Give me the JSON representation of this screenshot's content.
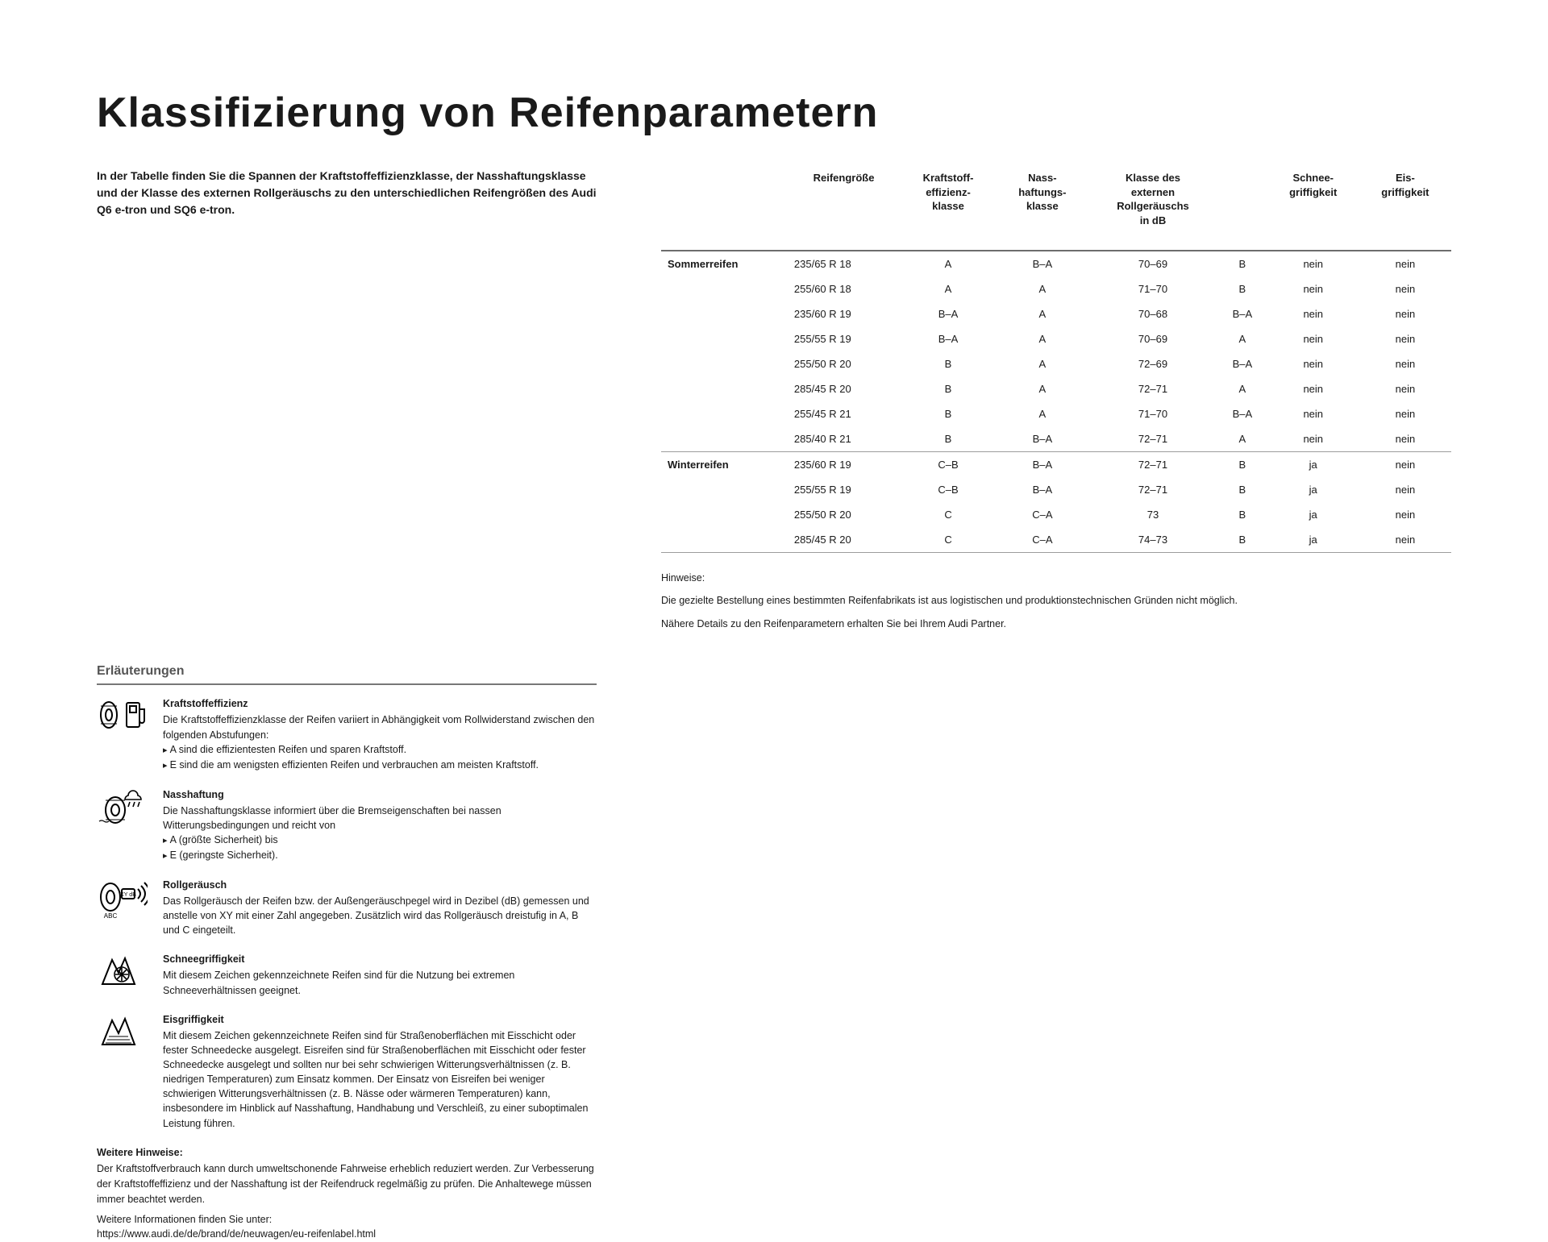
{
  "title": "Klassifizierung von Reifenparametern",
  "intro": "In der Tabelle finden Sie die Spannen der Kraftstoffeffizienzklasse, der Nasshaftungsklasse und der Klasse des externen Rollgeräuschs zu den unterschiedlichen Reifengrößen des Audi Q6 e-tron und SQ6 e-tron.",
  "erlTitle": "Erläuterungen",
  "expl": [
    {
      "title": "Kraftstoffeffizienz",
      "body": "Die Kraftstoffeffizienzklasse der Reifen variiert in Abhängigkeit vom Rollwiderstand zwischen den folgenden Abstufungen:",
      "bullets": [
        "A sind die effizientesten Reifen und sparen Kraftstoff.",
        "E sind die am wenigsten effizienten Reifen und verbrauchen am meisten Kraftstoff."
      ]
    },
    {
      "title": "Nasshaftung",
      "body": "Die Nasshaftungsklasse informiert über die Bremseigenschaften bei nassen Witterungsbedingungen und reicht von",
      "bullets": [
        "A (größte Sicherheit) bis",
        "E (geringste Sicherheit)."
      ]
    },
    {
      "title": "Rollgeräusch",
      "body": "Das Rollgeräusch der Reifen bzw. der Außengeräuschpegel wird in Dezibel (dB) gemessen und anstelle von XY mit einer Zahl angegeben. Zusätzlich wird das Rollgeräusch dreistufig in A, B und C eingeteilt.",
      "bullets": []
    },
    {
      "title": "Schneegriffigkeit",
      "body": "Mit diesem Zeichen gekennzeichnete Reifen sind für die Nutzung bei extremen Schneeverhältnissen geeignet.",
      "bullets": []
    },
    {
      "title": "Eisgriffigkeit",
      "body": "Mit diesem Zeichen gekennzeichnete Reifen sind für Straßenoberflächen mit Eisschicht oder fester Schneedecke ausgelegt.\nEisreifen sind für Straßenoberflächen mit Eisschicht oder fester Schneedecke ausgelegt und sollten nur bei sehr schwierigen Witterungsverhältnissen (z. B. niedrigen Temperaturen) zum Einsatz kommen. Der Einsatz von Eisreifen bei weniger schwierigen Witterungsverhältnissen (z. B. Nässe oder wärmeren Temperaturen) kann, insbesondere im Hinblick auf Nasshaftung, Handhabung und Verschleiß, zu einer suboptimalen Leistung führen.",
      "bullets": []
    }
  ],
  "furtherTitle": "Weitere Hinweise:",
  "furtherBody": "Der Kraftstoffverbrauch kann durch umweltschonende Fahrweise erheblich reduziert werden. Zur Verbesserung der Kraftstoffeffizienz und der Nasshaftung ist der Reifendruck regelmäßig zu prüfen. Die Anhaltewege müssen immer beachtet werden.",
  "moreInfoLabel": "Weitere Informationen finden Sie unter:",
  "moreInfoUrl": "https://www.audi.de/de/brand/de/neuwagen/eu-reifenlabel.html",
  "table": {
    "headers": [
      "",
      "Reifengröße",
      "Kraftstoff-\neffizienz-\nklasse",
      "Nass-\nhaftungs-\nklasse",
      "Klasse des\nexternen\nRollgeräuschs\nin dB",
      "",
      "Schnee-\ngriffigkeit",
      "Eis-\ngriffigkeit"
    ],
    "groups": [
      {
        "label": "Sommerreifen",
        "rows": [
          [
            "235/65 R 18",
            "A",
            "B–A",
            "70–69",
            "B",
            "nein",
            "nein"
          ],
          [
            "255/60 R 18",
            "A",
            "A",
            "71–70",
            "B",
            "nein",
            "nein"
          ],
          [
            "235/60 R 19",
            "B–A",
            "A",
            "70–68",
            "B–A",
            "nein",
            "nein"
          ],
          [
            "255/55 R 19",
            "B–A",
            "A",
            "70–69",
            "A",
            "nein",
            "nein"
          ],
          [
            "255/50 R 20",
            "B",
            "A",
            "72–69",
            "B–A",
            "nein",
            "nein"
          ],
          [
            "285/45 R 20",
            "B",
            "A",
            "72–71",
            "A",
            "nein",
            "nein"
          ],
          [
            "255/45 R 21",
            "B",
            "A",
            "71–70",
            "B–A",
            "nein",
            "nein"
          ],
          [
            "285/40 R 21",
            "B",
            "B–A",
            "72–71",
            "A",
            "nein",
            "nein"
          ]
        ]
      },
      {
        "label": "Winterreifen",
        "rows": [
          [
            "235/60 R 19",
            "C–B",
            "B–A",
            "72–71",
            "B",
            "ja",
            "nein"
          ],
          [
            "255/55 R 19",
            "C–B",
            "B–A",
            "72–71",
            "B",
            "ja",
            "nein"
          ],
          [
            "255/50 R 20",
            "C",
            "C–A",
            "73",
            "B",
            "ja",
            "nein"
          ],
          [
            "285/45 R 20",
            "C",
            "C–A",
            "74–73",
            "B",
            "ja",
            "nein"
          ]
        ]
      }
    ]
  },
  "hinweiseLabel": "Hinweise:",
  "hinweise1": "Die gezielte Bestellung eines bestimmten Reifenfabrikats ist aus logistischen und produktionstechnischen Gründen nicht möglich.",
  "hinweise2": "Nähere Details zu den Reifenparametern erhalten Sie bei Ihrem Audi Partner.",
  "colors": {
    "text": "#1a1a1a",
    "border": "#6c6c6c",
    "bg": "#ffffff"
  }
}
